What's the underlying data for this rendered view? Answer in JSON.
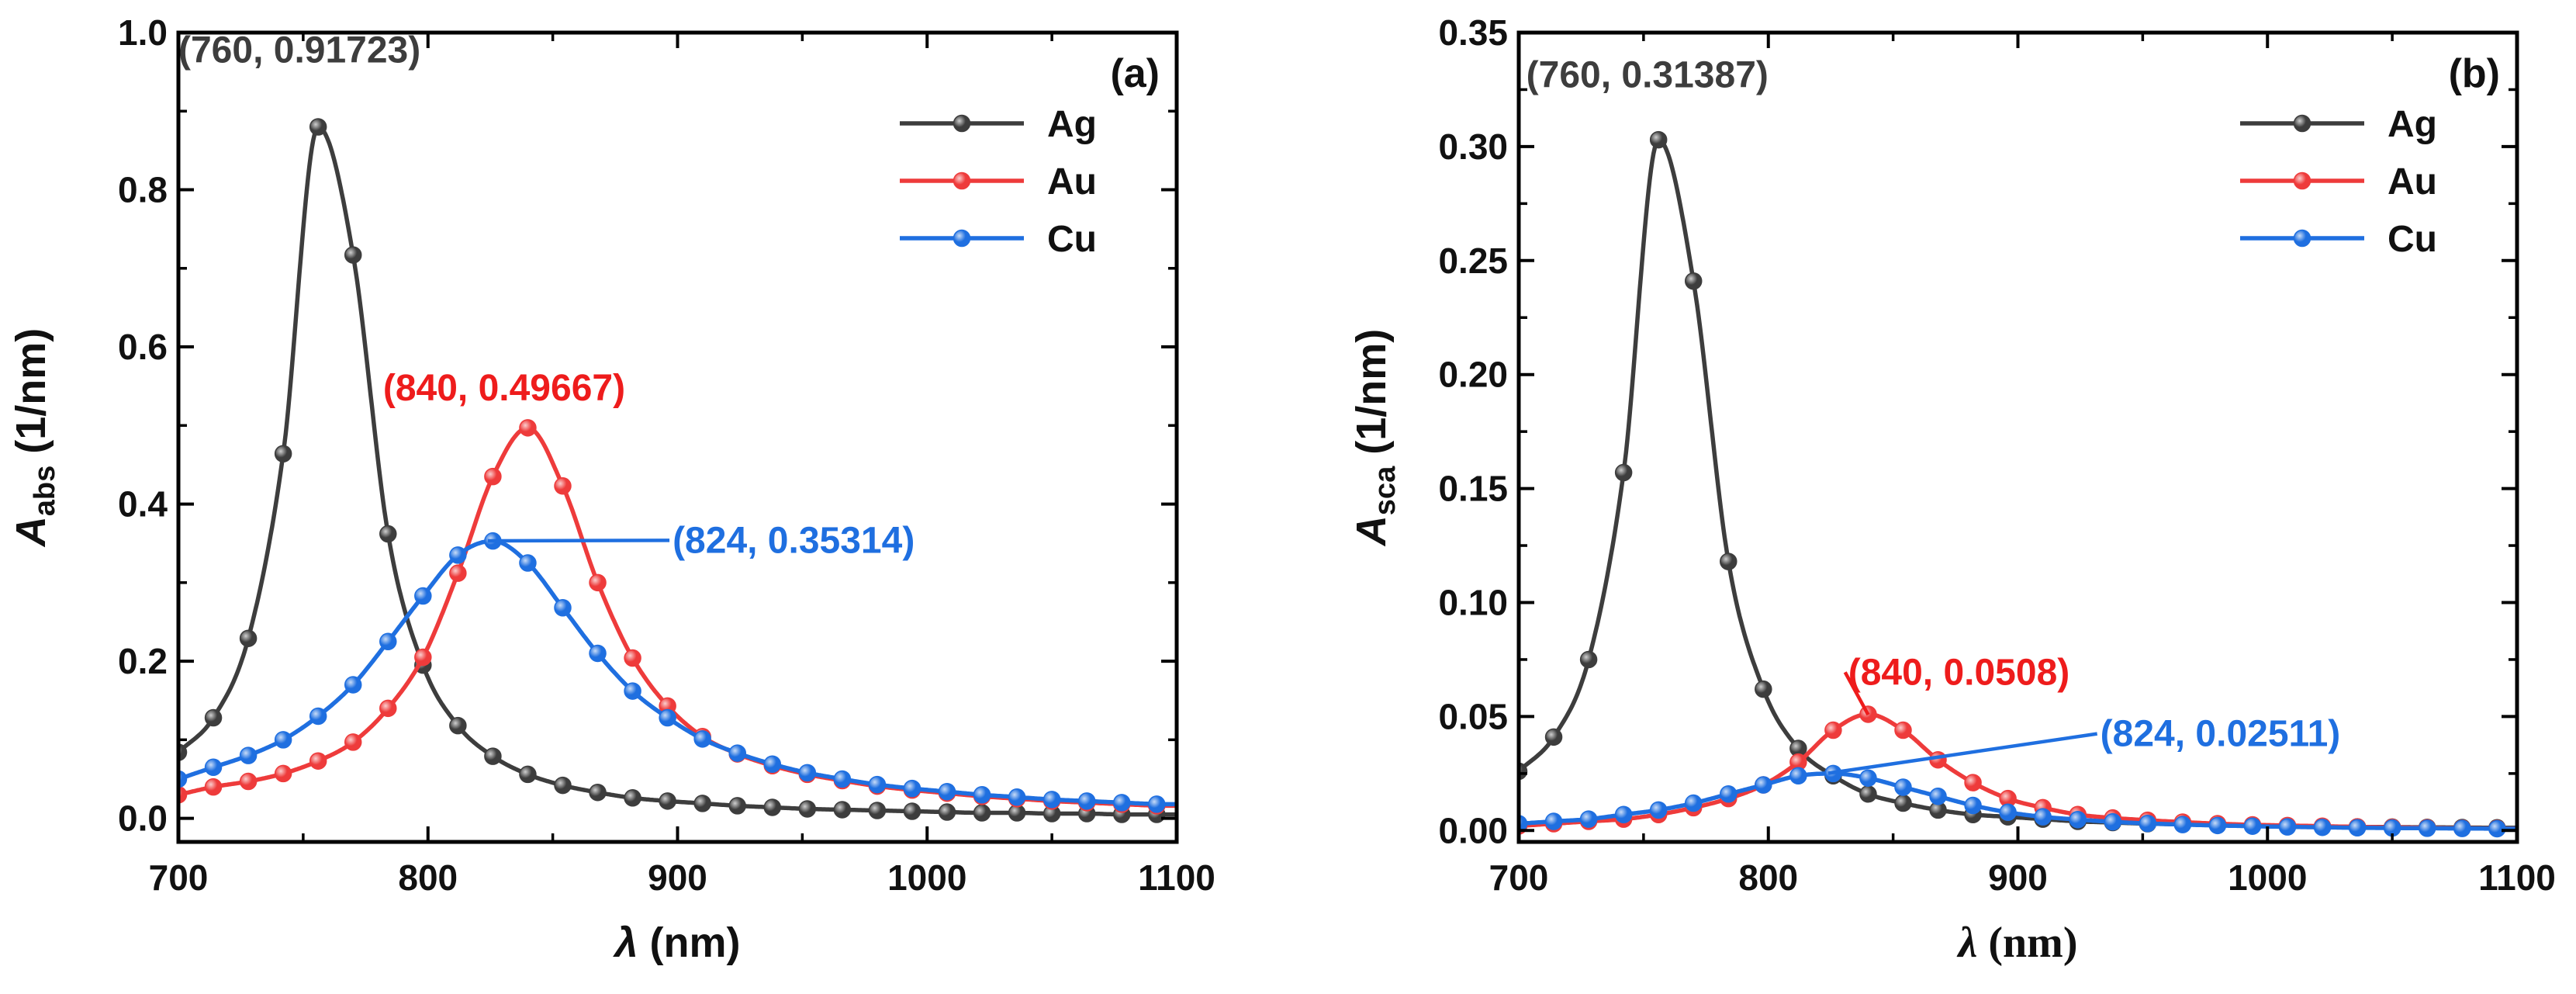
{
  "chart_data": [
    {
      "panel": "a",
      "type": "line",
      "panel_label": "(a)",
      "xlabel": "λ (nm)",
      "ylabel_main": "A",
      "ylabel_sub": "abs",
      "ylabel_unit": " (1/nm)",
      "xlim": [
        700,
        1100
      ],
      "ylim": [
        -0.03,
        1.0
      ],
      "xticks": [
        700,
        800,
        900,
        1000,
        1100
      ],
      "xtick_labels": [
        "700",
        "800",
        "900",
        "1000",
        "1100"
      ],
      "yticks": [
        0.0,
        0.2,
        0.4,
        0.6,
        0.8,
        1.0
      ],
      "ytick_labels": [
        "0.0",
        "0.2",
        "0.4",
        "0.6",
        "0.8",
        "1.0"
      ],
      "legend_position": "top-right",
      "series": [
        {
          "name": "Ag",
          "color": "#3d3d3d",
          "marker_x": [
            700,
            714,
            728,
            742,
            756,
            770,
            784,
            798,
            812,
            826,
            840,
            854,
            868,
            882,
            896,
            910,
            924,
            938,
            952,
            966,
            980,
            994,
            1008,
            1022,
            1036,
            1050,
            1064,
            1078,
            1092
          ],
          "marker_y": [
            0.084,
            0.128,
            0.229,
            0.464,
            0.88,
            0.717,
            0.362,
            0.195,
            0.118,
            0.079,
            0.056,
            0.042,
            0.033,
            0.026,
            0.022,
            0.019,
            0.016,
            0.014,
            0.012,
            0.011,
            0.01,
            0.009,
            0.008,
            0.007,
            0.007,
            0.006,
            0.006,
            0.005,
            0.005
          ]
        },
        {
          "name": "Au",
          "color": "#ee3b3b",
          "marker_x": [
            700,
            714,
            728,
            742,
            756,
            770,
            784,
            798,
            812,
            826,
            840,
            854,
            868,
            882,
            896,
            910,
            924,
            938,
            952,
            966,
            980,
            994,
            1008,
            1022,
            1036,
            1050,
            1064,
            1078,
            1092
          ],
          "marker_y": [
            0.03,
            0.04,
            0.047,
            0.057,
            0.073,
            0.097,
            0.14,
            0.205,
            0.312,
            0.435,
            0.497,
            0.423,
            0.3,
            0.204,
            0.143,
            0.104,
            0.082,
            0.067,
            0.056,
            0.048,
            0.041,
            0.036,
            0.032,
            0.028,
            0.025,
            0.022,
            0.02,
            0.018,
            0.016
          ]
        },
        {
          "name": "Cu",
          "color": "#1f6fe0",
          "marker_x": [
            700,
            714,
            728,
            742,
            756,
            770,
            784,
            798,
            812,
            826,
            840,
            854,
            868,
            882,
            896,
            910,
            924,
            938,
            952,
            966,
            980,
            994,
            1008,
            1022,
            1036,
            1050,
            1064,
            1078,
            1092
          ],
          "marker_y": [
            0.05,
            0.065,
            0.08,
            0.1,
            0.13,
            0.17,
            0.225,
            0.283,
            0.335,
            0.353,
            0.325,
            0.268,
            0.21,
            0.162,
            0.128,
            0.101,
            0.083,
            0.069,
            0.058,
            0.05,
            0.043,
            0.038,
            0.034,
            0.03,
            0.027,
            0.024,
            0.022,
            0.02,
            0.018
          ]
        }
      ],
      "annotations": [
        {
          "text": "(760, 0.91723)",
          "color": "#3d3d3d",
          "at": [
            760,
            0.91723
          ],
          "label_pos": [
            700,
            0.962
          ],
          "leader": false
        },
        {
          "text": "(840, 0.49667)",
          "color": "#ee1c1c",
          "at": [
            840,
            0.49667
          ],
          "label_pos": [
            782,
            0.532
          ],
          "leader": false
        },
        {
          "text": "(824, 0.35314)",
          "color": "#1f6fe0",
          "at": [
            824,
            0.35314
          ],
          "label_pos": [
            898,
            0.338
          ],
          "leader": true
        }
      ]
    },
    {
      "panel": "b",
      "type": "line",
      "panel_label": "(b)",
      "xlabel": "λ (nm)",
      "ylabel_main": "A",
      "ylabel_sub": "sca",
      "ylabel_unit": " (1/nm)",
      "xlim": [
        700,
        1100
      ],
      "ylim": [
        -0.005,
        0.35
      ],
      "xticks": [
        700,
        800,
        900,
        1000,
        1100
      ],
      "xtick_labels": [
        "700",
        "800",
        "900",
        "1000",
        "1100"
      ],
      "yticks": [
        0.0,
        0.05,
        0.1,
        0.15,
        0.2,
        0.25,
        0.3,
        0.35
      ],
      "ytick_labels": [
        "0.00",
        "0.05",
        "0.10",
        "0.15",
        "0.20",
        "0.25",
        "0.30",
        "0.35"
      ],
      "legend_position": "top-right",
      "series": [
        {
          "name": "Ag",
          "color": "#3d3d3d",
          "marker_x": [
            700,
            714,
            728,
            742,
            756,
            770,
            784,
            798,
            812,
            826,
            840,
            854,
            868,
            882,
            896,
            910,
            924,
            938,
            952,
            966,
            980,
            994,
            1008,
            1022,
            1036,
            1050,
            1064,
            1078,
            1092
          ],
          "marker_y": [
            0.026,
            0.041,
            0.075,
            0.157,
            0.303,
            0.241,
            0.118,
            0.062,
            0.036,
            0.024,
            0.016,
            0.012,
            0.009,
            0.007,
            0.006,
            0.005,
            0.004,
            0.0035,
            0.003,
            0.0027,
            0.0024,
            0.0021,
            0.0019,
            0.0017,
            0.0016,
            0.0015,
            0.0014,
            0.0013,
            0.0012
          ]
        },
        {
          "name": "Au",
          "color": "#ee3b3b",
          "marker_x": [
            700,
            714,
            728,
            742,
            756,
            770,
            784,
            798,
            812,
            826,
            840,
            854,
            868,
            882,
            896,
            910,
            924,
            938,
            952,
            966,
            980,
            994,
            1008,
            1022,
            1036,
            1050,
            1064,
            1078,
            1092
          ],
          "marker_y": [
            0.002,
            0.003,
            0.004,
            0.005,
            0.007,
            0.01,
            0.014,
            0.02,
            0.03,
            0.044,
            0.051,
            0.044,
            0.031,
            0.021,
            0.014,
            0.01,
            0.007,
            0.0055,
            0.0045,
            0.0037,
            0.003,
            0.0025,
            0.0022,
            0.0019,
            0.0016,
            0.0014,
            0.0012,
            0.001,
            0.0009
          ]
        },
        {
          "name": "Cu",
          "color": "#1f6fe0",
          "marker_x": [
            700,
            714,
            728,
            742,
            756,
            770,
            784,
            798,
            812,
            826,
            840,
            854,
            868,
            882,
            896,
            910,
            924,
            938,
            952,
            966,
            980,
            994,
            1008,
            1022,
            1036,
            1050,
            1064,
            1078,
            1092
          ],
          "marker_y": [
            0.003,
            0.004,
            0.005,
            0.007,
            0.009,
            0.012,
            0.016,
            0.02,
            0.024,
            0.025,
            0.023,
            0.019,
            0.015,
            0.011,
            0.008,
            0.006,
            0.0048,
            0.0038,
            0.0031,
            0.0026,
            0.0022,
            0.0019,
            0.0016,
            0.0014,
            0.0012,
            0.0011,
            0.001,
            0.0009,
            0.0008
          ]
        }
      ],
      "annotations": [
        {
          "text": "(760, 0.31387)",
          "color": "#3d3d3d",
          "at": [
            760,
            0.31387
          ],
          "label_pos": [
            703,
            0.326
          ],
          "leader": false
        },
        {
          "text": "(840, 0.0508)",
          "color": "#ee1c1c",
          "at": [
            840,
            0.0508
          ],
          "label_pos": [
            832,
            0.064
          ],
          "leader": true
        },
        {
          "text": "(824, 0.02511)",
          "color": "#1f6fe0",
          "at": [
            824,
            0.02511
          ],
          "label_pos": [
            933,
            0.037
          ],
          "leader": true
        }
      ]
    }
  ]
}
